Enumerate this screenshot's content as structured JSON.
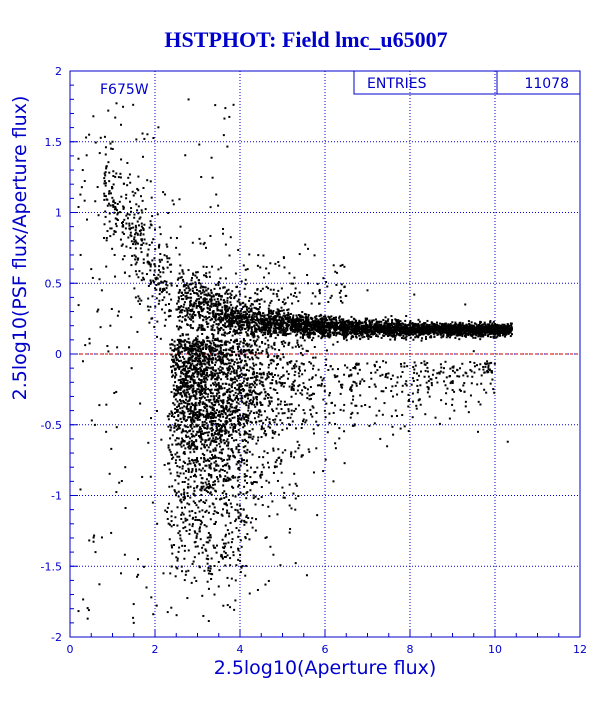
{
  "chart_data": {
    "type": "scatter",
    "title": "HSTPHOT: Field lmc_u65007",
    "xlabel": "2.5log10(Aperture flux)",
    "ylabel": "2.5log10(PSF flux/Aperture flux)",
    "xlim": [
      0,
      12
    ],
    "ylim": [
      -2,
      2
    ],
    "x_ticks": [
      "0",
      "2",
      "4",
      "6",
      "8",
      "10",
      "12"
    ],
    "y_ticks": [
      "-2",
      "-1.5",
      "-1",
      "-0.5",
      "0",
      "0.5",
      "1",
      "1.5",
      "2"
    ],
    "grid": true,
    "filter_label": "F675W",
    "stats": {
      "label": "ENTRIES",
      "value": "11078"
    },
    "reference_line": {
      "y": 0,
      "color": "#cc0000",
      "style": "dashed"
    },
    "series": [
      {
        "marker_color": "#000000",
        "points": [
          [
            0.9,
            1.72
          ],
          [
            0.55,
            1.68
          ],
          [
            1.2,
            1.62
          ],
          [
            0.45,
            1.55
          ],
          [
            1.0,
            1.5
          ],
          [
            1.75,
            1.52
          ],
          [
            0.7,
            1.42
          ],
          [
            1.35,
            1.35
          ],
          [
            0.3,
            1.3
          ],
          [
            1.15,
            1.25
          ],
          [
            1.9,
            1.22
          ],
          [
            0.65,
            1.18
          ],
          [
            1.5,
            1.12
          ],
          [
            0.95,
            1.05
          ],
          [
            1.7,
            1.0
          ],
          [
            0.4,
            0.95
          ],
          [
            1.25,
            0.9
          ],
          [
            2.0,
            0.88
          ],
          [
            0.8,
            0.82
          ],
          [
            1.6,
            0.78
          ],
          [
            1.05,
            0.7
          ],
          [
            1.85,
            0.65
          ],
          [
            0.5,
            0.6
          ],
          [
            1.4,
            0.55
          ],
          [
            2.1,
            0.5
          ],
          [
            0.75,
            0.45
          ],
          [
            1.55,
            0.4
          ],
          [
            1.15,
            0.3
          ],
          [
            0.95,
            0.2
          ],
          [
            1.45,
            -0.1
          ],
          [
            1.65,
            -0.35
          ],
          [
            0.85,
            -0.55
          ],
          [
            1.3,
            -0.8
          ],
          [
            1.95,
            -1.05
          ],
          [
            1.6,
            -1.45
          ],
          [
            1.2,
            -1.55
          ],
          [
            1.5,
            -1.9
          ],
          [
            1.8,
            -1.65
          ],
          [
            2.05,
            -1.2
          ],
          [
            0.6,
            -1.4
          ],
          [
            2.2,
            -1.55
          ],
          [
            3.4,
            -1.7
          ],
          [
            3.9,
            -1.6
          ],
          [
            4.6,
            -1.3
          ],
          [
            5.3,
            -1.1
          ],
          [
            6.2,
            -0.9
          ],
          [
            7.3,
            -0.6
          ],
          [
            8.6,
            -0.45
          ],
          [
            9.6,
            -0.55
          ],
          [
            10.3,
            -0.62
          ],
          [
            9.3,
            0.35
          ],
          [
            8.1,
            0.42
          ],
          [
            7.0,
            0.45
          ],
          [
            5.6,
            0.5
          ],
          [
            4.9,
            0.65
          ],
          [
            3.6,
            0.85
          ],
          [
            3.2,
            0.75
          ],
          [
            2.6,
            0.9
          ],
          [
            0.2,
            1.38
          ],
          [
            0.25,
            0.7
          ],
          [
            9.9,
            0.12
          ],
          [
            10.2,
            0.15
          ],
          [
            10.4,
            0.14
          ],
          [
            9.5,
            0.02
          ],
          [
            8.8,
            -0.1
          ],
          [
            6.7,
            -0.2
          ]
        ]
      }
    ]
  }
}
